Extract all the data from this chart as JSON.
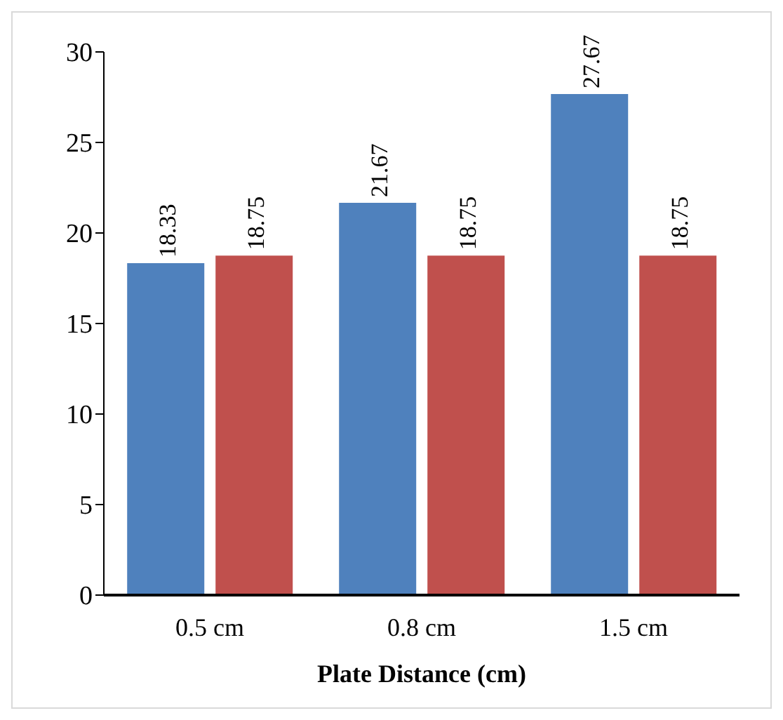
{
  "chart_data": {
    "type": "bar",
    "xlabel": "Plate Distance (cm)",
    "categories": [
      "0.5 cm",
      "0.8 cm",
      "1.5 cm"
    ],
    "series": [
      {
        "color": "#4f81bd",
        "values": [
          18.33,
          21.67,
          27.67
        ]
      },
      {
        "color": "#c0504d",
        "values": [
          18.75,
          18.75,
          18.75
        ]
      }
    ],
    "ylim": [
      0,
      30
    ],
    "yticks": [
      0,
      5,
      10,
      15,
      20,
      25,
      30
    ],
    "grid": false,
    "legend": false,
    "data_labels": true
  }
}
